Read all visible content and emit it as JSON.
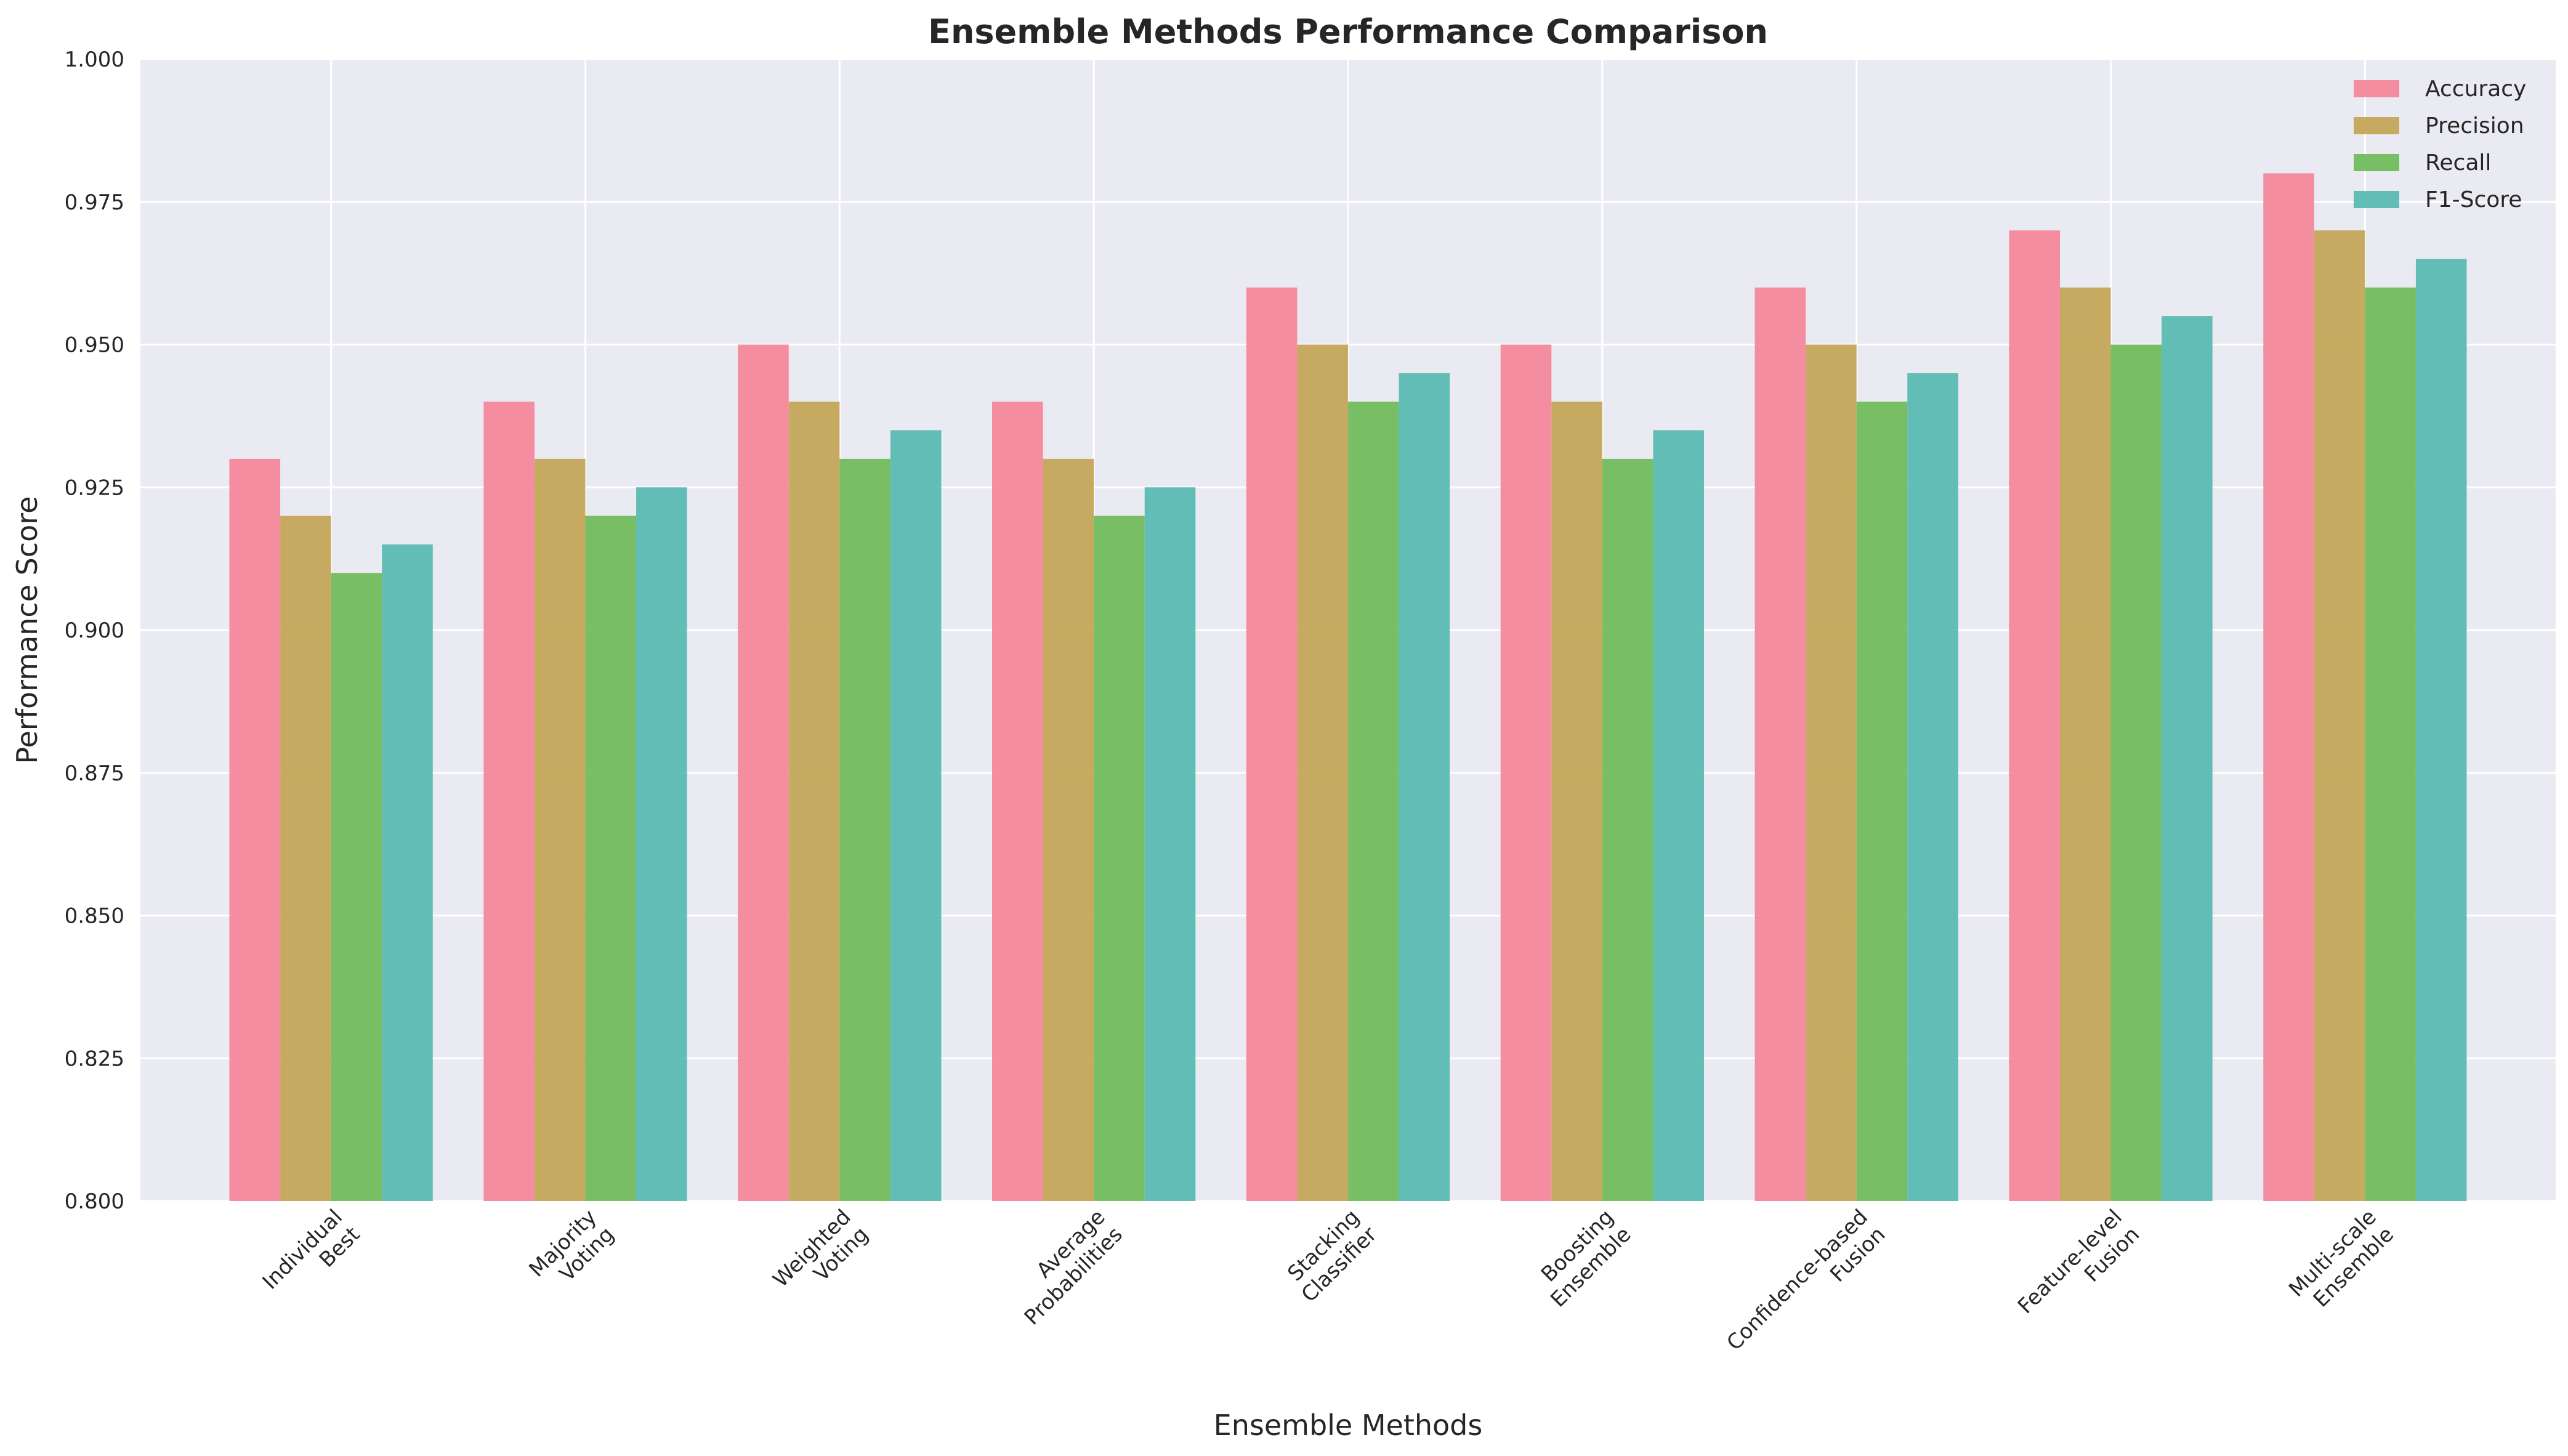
{
  "chart_data": {
    "type": "bar",
    "title": "Ensemble Methods Performance Comparison",
    "xlabel": "Ensemble Methods",
    "ylabel": "Performance Score",
    "ylim": [
      0.8,
      1.0
    ],
    "yticks": [
      0.8,
      0.825,
      0.85,
      0.875,
      0.9,
      0.925,
      0.95,
      0.975,
      1.0
    ],
    "ytick_labels": [
      "0.800",
      "0.825",
      "0.850",
      "0.875",
      "0.900",
      "0.925",
      "0.950",
      "0.975",
      "1.000"
    ],
    "grid": true,
    "legend_position": "top-right",
    "categories": [
      [
        "Individual",
        "Best"
      ],
      [
        "Majority",
        "Voting"
      ],
      [
        "Weighted",
        "Voting"
      ],
      [
        "Average",
        "Probabilities"
      ],
      [
        "Stacking",
        "Classifier"
      ],
      [
        "Boosting",
        "Ensemble"
      ],
      [
        "Confidence-based",
        "Fusion"
      ],
      [
        "Feature-level",
        "Fusion"
      ],
      [
        "Multi-scale",
        "Ensemble"
      ]
    ],
    "series": [
      {
        "name": "Accuracy",
        "color": "#f5889c",
        "values": [
          0.93,
          0.94,
          0.95,
          0.94,
          0.96,
          0.95,
          0.96,
          0.97,
          0.98
        ]
      },
      {
        "name": "Precision",
        "color": "#c4a658",
        "values": [
          0.92,
          0.93,
          0.94,
          0.93,
          0.95,
          0.94,
          0.95,
          0.96,
          0.97
        ]
      },
      {
        "name": "Recall",
        "color": "#71bc5d",
        "values": [
          0.91,
          0.92,
          0.93,
          0.92,
          0.94,
          0.93,
          0.94,
          0.95,
          0.96
        ]
      },
      {
        "name": "F1-Score",
        "color": "#5bbab2",
        "values": [
          0.915,
          0.925,
          0.935,
          0.925,
          0.945,
          0.935,
          0.945,
          0.955,
          0.965
        ]
      }
    ]
  },
  "colors": {
    "plot_background": "#eaeaf2",
    "grid": "#ffffff",
    "text": "#262626"
  }
}
